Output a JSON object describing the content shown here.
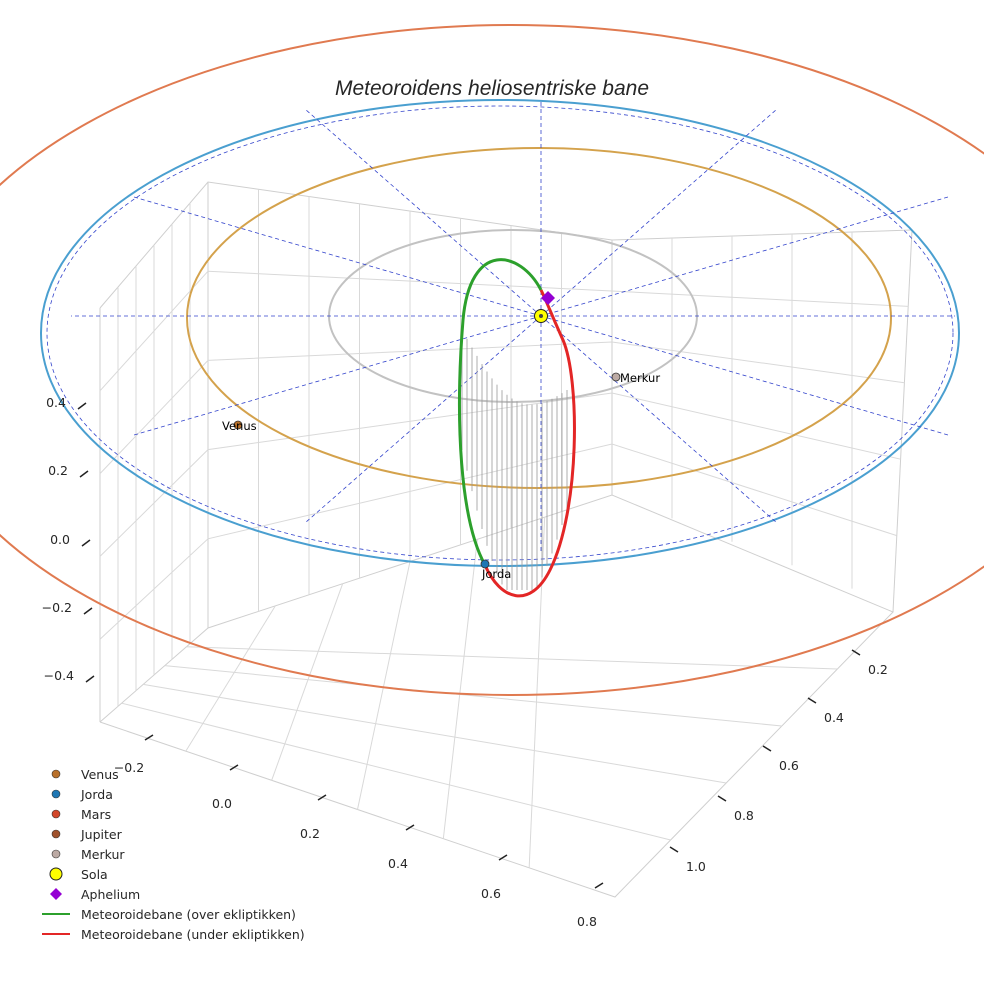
{
  "chart_data": {
    "type": "line",
    "projection": "3d",
    "title": "Meteoroidens heliosentriske bane",
    "grid": true,
    "legend_position": "bottom-left",
    "axes": {
      "x": {
        "ticks": [
          "−0.2",
          "0.0",
          "0.2",
          "0.4",
          "0.6",
          "0.8"
        ]
      },
      "y": {
        "ticks": [
          "0.2",
          "0.4",
          "0.6",
          "0.8",
          "1.0"
        ]
      },
      "z": {
        "ticks": [
          "0.4",
          "0.2",
          "0.0",
          "−0.2",
          "−0.4"
        ]
      }
    },
    "planets": [
      {
        "name": "Venus",
        "label": "Venus",
        "color": "#b8702a"
      },
      {
        "name": "Jorda",
        "label": "Jorda",
        "color": "#1f77b4"
      },
      {
        "name": "Mars",
        "label": "",
        "color": "#d2472a"
      },
      {
        "name": "Jupiter",
        "label": "",
        "color": "#a0522d"
      },
      {
        "name": "Merkur",
        "label": "Merkur",
        "color": "#bcaaa4"
      }
    ],
    "orbit_colors": {
      "merkur": "#c2c2c2",
      "venus": "#d4a24c",
      "jorda": "#4a9fd0",
      "mars": "#e07a50",
      "ekliptikk_ref": "#3344cc"
    },
    "legend": [
      {
        "label": "Venus",
        "marker": "circle",
        "color": "#b8702a"
      },
      {
        "label": "Jorda",
        "marker": "circle",
        "color": "#1f77b4"
      },
      {
        "label": "Mars",
        "marker": "circle",
        "color": "#d2472a"
      },
      {
        "label": "Jupiter",
        "marker": "circle",
        "color": "#a0522d"
      },
      {
        "label": "Merkur",
        "marker": "circle",
        "color": "#bcaaa4"
      },
      {
        "label": "Sola",
        "marker": "big-circle",
        "color": "#ffff00"
      },
      {
        "label": "Aphelium",
        "marker": "diamond",
        "color": "#9400d3"
      },
      {
        "label": "Meteoroidebane (over ekliptikken)",
        "marker": "line",
        "color": "#2ca02c"
      },
      {
        "label": "Meteoroidebane (under ekliptikken)",
        "marker": "line",
        "color": "#e32626"
      }
    ],
    "series": [
      {
        "name": "Meteoroidebane (over ekliptikken)",
        "color": "#2ca02c"
      },
      {
        "name": "Meteoroidebane (under ekliptikken)",
        "color": "#e32626"
      }
    ],
    "sun": {
      "label": "Sola",
      "color": "#ffff00"
    },
    "aphelion": {
      "label": "Aphelium",
      "color": "#9400d3"
    }
  }
}
